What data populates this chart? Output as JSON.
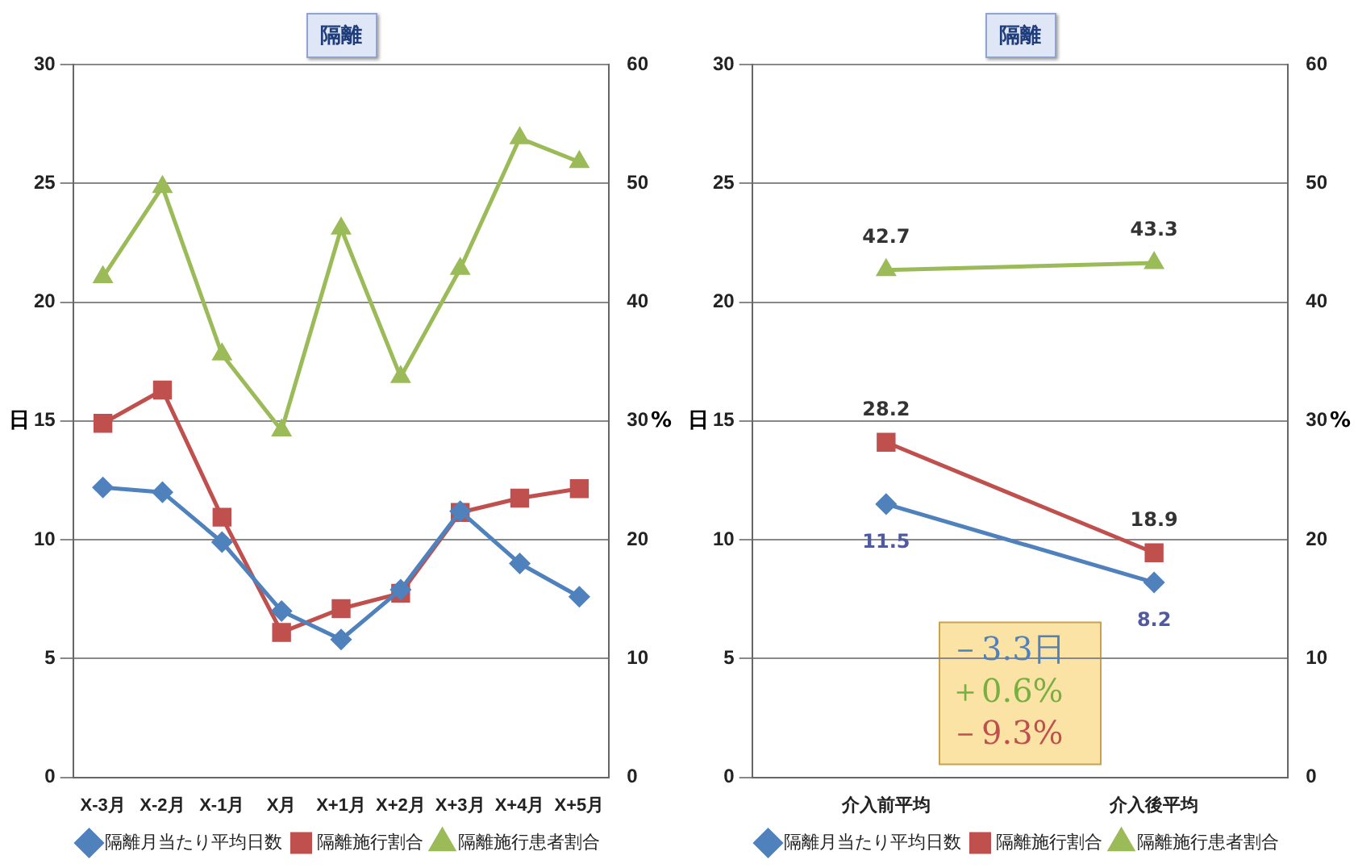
{
  "chart_data": [
    {
      "type": "line",
      "title": "隔離",
      "ylabel": "日",
      "y2label": "%",
      "categories": [
        "X-3月",
        "X-2月",
        "X-1月",
        "X月",
        "X+1月",
        "X+2月",
        "X+3月",
        "X+4月",
        "X+5月"
      ],
      "series": [
        {
          "name": "隔離月当たり平均日数",
          "color": "#4f81bd",
          "marker": "diamond",
          "values": [
            12.2,
            12.0,
            9.9,
            7.0,
            5.8,
            7.9,
            11.2,
            9.0,
            7.6
          ]
        },
        {
          "name": "隔離施行割合",
          "color": "#c0504d",
          "marker": "square",
          "axis": "y2",
          "values": [
            29.8,
            32.6,
            21.9,
            12.2,
            14.2,
            15.5,
            22.3,
            23.5,
            24.3
          ]
        },
        {
          "name": "隔離施行患者割合",
          "color": "#9bbb59",
          "marker": "triangle",
          "axis": "y2",
          "values": [
            42.1,
            49.7,
            35.6,
            29.2,
            46.2,
            33.7,
            42.8,
            53.8,
            51.8
          ]
        }
      ],
      "ylim": [
        0,
        30
      ],
      "yticks": [
        0,
        5,
        10,
        15,
        20,
        25,
        30
      ],
      "y2lim": [
        0,
        60
      ],
      "y2ticks": [
        0,
        10,
        20,
        30,
        40,
        50,
        60
      ],
      "grid": "y",
      "legend": "bottom"
    },
    {
      "type": "line",
      "title": "隔離",
      "ylabel": "日",
      "y2label": "%",
      "categories": [
        "介入前平均",
        "介入後平均"
      ],
      "series": [
        {
          "name": "隔離月当たり平均日数",
          "color": "#4f81bd",
          "marker": "diamond",
          "values": [
            11.5,
            8.2
          ]
        },
        {
          "name": "隔離施行割合",
          "color": "#c0504d",
          "marker": "square",
          "axis": "y2",
          "values": [
            28.2,
            18.9
          ]
        },
        {
          "name": "隔離施行患者割合",
          "color": "#9bbb59",
          "marker": "triangle",
          "axis": "y2",
          "values": [
            42.7,
            43.3
          ]
        }
      ],
      "ylim": [
        0,
        30
      ],
      "yticks": [
        0,
        5,
        10,
        15,
        20,
        25,
        30
      ],
      "y2lim": [
        0,
        60
      ],
      "y2ticks": [
        0,
        10,
        20,
        30,
        40,
        50,
        60
      ],
      "grid": "y",
      "legend": "bottom",
      "data_labels": true,
      "annotations": [
        "－3.3日",
        "＋0.6%",
        "－9.3%"
      ]
    }
  ]
}
